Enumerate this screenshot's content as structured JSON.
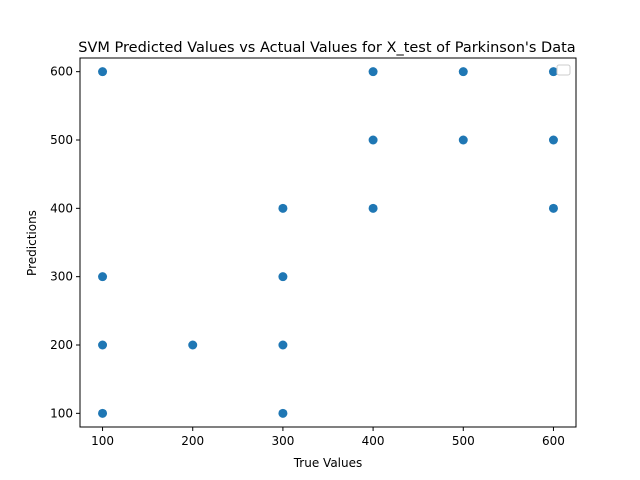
{
  "chart_data": {
    "type": "scatter",
    "title": "SVM Predicted Values vs Actual Values for X_test of Parkinson's Data",
    "xlabel": "True Values",
    "ylabel": "Predictions",
    "xlim": [
      75,
      625
    ],
    "ylim": [
      80,
      620
    ],
    "xticks": [
      100,
      200,
      300,
      400,
      500,
      600
    ],
    "yticks": [
      100,
      200,
      300,
      400,
      500,
      600
    ],
    "grid": false,
    "legend": "top-right (empty)",
    "colors": {
      "marker": "#1f77b4",
      "axes": "#000000",
      "legend_border": "#cccccc"
    },
    "series": [
      {
        "points": [
          [
            100,
            100
          ],
          [
            100,
            200
          ],
          [
            100,
            300
          ],
          [
            100,
            600
          ],
          [
            200,
            200
          ],
          [
            300,
            100
          ],
          [
            300,
            200
          ],
          [
            300,
            300
          ],
          [
            300,
            400
          ],
          [
            400,
            400
          ],
          [
            400,
            500
          ],
          [
            400,
            600
          ],
          [
            500,
            500
          ],
          [
            500,
            600
          ],
          [
            600,
            400
          ],
          [
            600,
            500
          ],
          [
            600,
            600
          ]
        ]
      }
    ]
  }
}
